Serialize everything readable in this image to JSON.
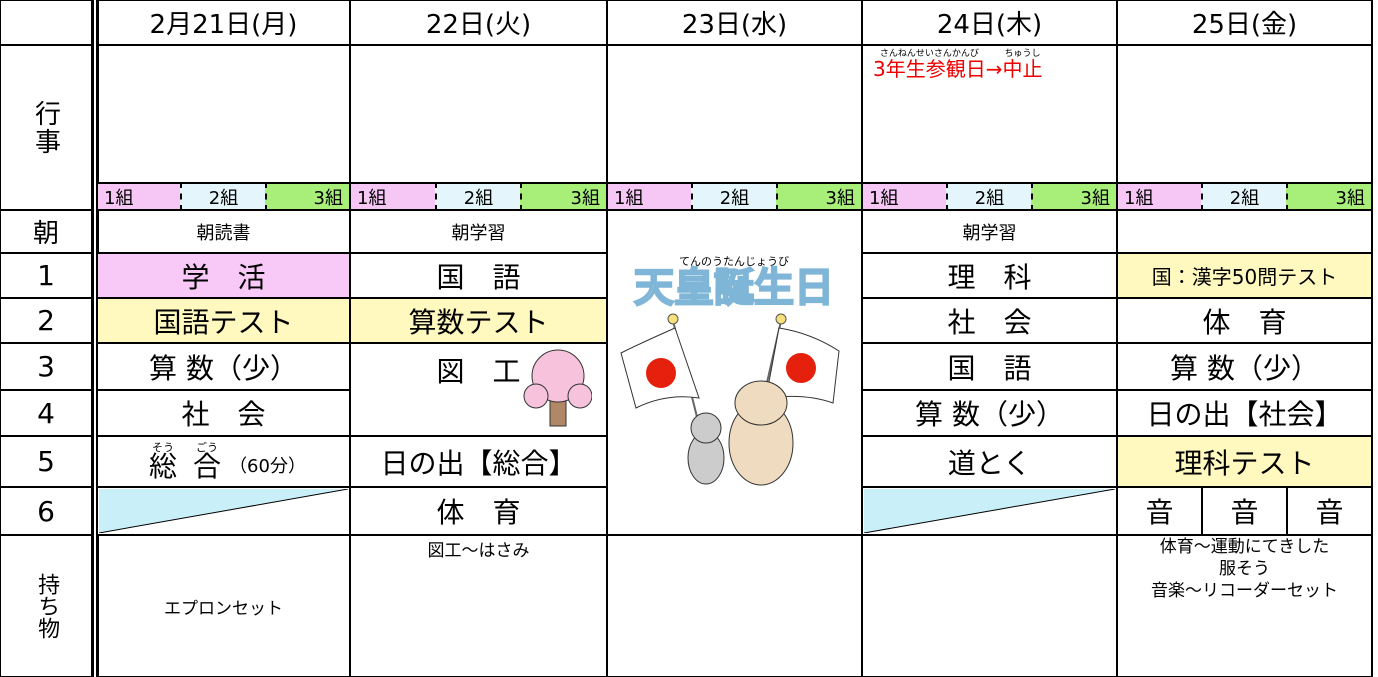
{
  "header": {
    "days": [
      "2月21日(月)",
      "22日(火)",
      "23日(水)",
      "24日(木)",
      "25日(金)"
    ]
  },
  "labels": {
    "event": "行事",
    "morning": "朝",
    "periods": [
      "1",
      "2",
      "3",
      "4",
      "5",
      "6"
    ],
    "belongings": "持ち物"
  },
  "groups": [
    "1組",
    "2組",
    "3組"
  ],
  "events": {
    "thu": {
      "ruby1": "さんねんせいさんかんび",
      "text1": "3年生参観日",
      "arrow": "→",
      "ruby2": "ちゅうし",
      "text2": "中止"
    }
  },
  "morning": {
    "mon": "朝読書",
    "tue": "朝学習",
    "thu": "朝学習"
  },
  "periods": [
    {
      "mon": "学　活",
      "tue": "国　語",
      "thu": "理　科",
      "fri": "国：漢字50問テスト"
    },
    {
      "mon": "国語テスト",
      "tue": "算数テスト",
      "thu": "社　会",
      "fri": "体　育"
    },
    {
      "mon": "算 数（少）",
      "tue": "図　工",
      "thu": "国　語",
      "fri": "算 数（少）"
    },
    {
      "mon": "社　会",
      "thu": "算 数（少）",
      "fri": "日の出【社会】"
    },
    {
      "mon": {
        "so_ruby": "そう",
        "so": "総",
        "go_ruby": "ごう",
        "go": "合",
        "note": "（60分）"
      },
      "tue": "日の出【総合】",
      "thu": "道とく",
      "fri": "理科テスト"
    },
    {
      "tue": "体　育",
      "fri": [
        "音",
        "音",
        "音"
      ]
    }
  ],
  "holiday": {
    "ruby": "てんのうたんじょうび",
    "name": "天皇誕生日"
  },
  "belongings": {
    "mon": "エプロンセット",
    "tue": "図工〜はさみ",
    "fri": [
      "体育〜運動にてきした",
      "服そう",
      "音楽〜リコーダーセット"
    ]
  }
}
